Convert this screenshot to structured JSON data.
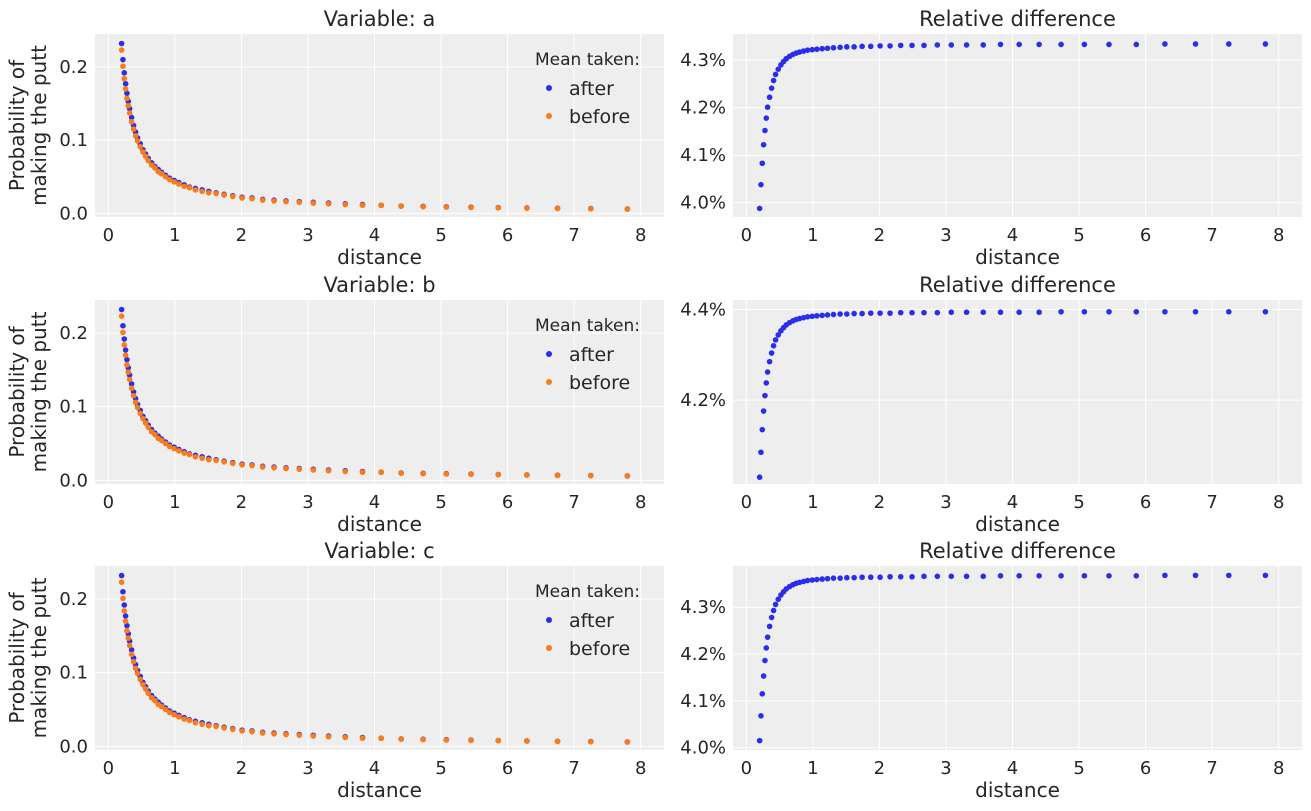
{
  "colors": {
    "after": "#2a2eec",
    "before": "#fa7c17",
    "panel_bg": "#eeeeee",
    "grid": "#ffffff"
  },
  "chart_data": [
    {
      "type": "scatter",
      "title": "Variable: a",
      "xlabel": "distance",
      "ylabel": [
        "Probability of",
        "making the putt"
      ],
      "xlim": [
        -0.2,
        8.35
      ],
      "ylim": [
        -0.005,
        0.245
      ],
      "xticks": [
        "0",
        "1",
        "2",
        "3",
        "4",
        "5",
        "6",
        "7",
        "8"
      ],
      "xtick_values": [
        0,
        1,
        2,
        3,
        4,
        5,
        6,
        7,
        8
      ],
      "yticks": [
        "0.0",
        "0.1",
        "0.2"
      ],
      "ytick_values": [
        0,
        0.1,
        0.2
      ],
      "legend": {
        "title": "Mean taken:",
        "position": "upper-right",
        "entries": [
          "after",
          "before"
        ]
      },
      "x": [
        0.2,
        0.22,
        0.24,
        0.26,
        0.28,
        0.3,
        0.32,
        0.35,
        0.38,
        0.41,
        0.44,
        0.48,
        0.52,
        0.56,
        0.6,
        0.65,
        0.7,
        0.75,
        0.8,
        0.86,
        0.92,
        0.99,
        1.06,
        1.14,
        1.22,
        1.31,
        1.41,
        1.51,
        1.62,
        1.74,
        1.87,
        2.01,
        2.16,
        2.32,
        2.49,
        2.67,
        2.87,
        3.08,
        3.31,
        3.56,
        3.82,
        4.1,
        4.4,
        4.73,
        5.08,
        5.45,
        5.86,
        6.29,
        6.75,
        7.25,
        7.8
      ],
      "series": [
        {
          "name": "after",
          "values": [
            0.232,
            0.21,
            0.192,
            0.177,
            0.164,
            0.153,
            0.143,
            0.131,
            0.12,
            0.111,
            0.103,
            0.095,
            0.087,
            0.081,
            0.075,
            0.069,
            0.064,
            0.06,
            0.056,
            0.052,
            0.048,
            0.045,
            0.042,
            0.039,
            0.036,
            0.034,
            0.032,
            0.03,
            0.028,
            0.026,
            0.024,
            0.022,
            0.021,
            0.019,
            0.018,
            0.017,
            0.016,
            0.015,
            0.014,
            0.013,
            0.012,
            0.011,
            0.01,
            0.0095,
            0.009,
            0.0085,
            0.0079,
            0.0074,
            0.0069,
            0.0065,
            0.006
          ]
        },
        {
          "name": "before",
          "values": [
            0.223,
            0.201,
            0.184,
            0.17,
            0.157,
            0.147,
            0.137,
            0.125,
            0.115,
            0.106,
            0.099,
            0.091,
            0.084,
            0.078,
            0.072,
            0.066,
            0.062,
            0.057,
            0.054,
            0.05,
            0.046,
            0.043,
            0.04,
            0.037,
            0.035,
            0.032,
            0.03,
            0.028,
            0.027,
            0.025,
            0.023,
            0.021,
            0.02,
            0.018,
            0.017,
            0.016,
            0.015,
            0.014,
            0.013,
            0.012,
            0.011,
            0.011,
            0.0098,
            0.0091,
            0.0086,
            0.0081,
            0.0076,
            0.0071,
            0.0066,
            0.0062,
            0.0058
          ]
        }
      ]
    },
    {
      "type": "scatter",
      "title": "Relative difference",
      "xlabel": "distance",
      "xlim": [
        -0.2,
        8.35
      ],
      "ylim": [
        0.0397,
        0.04355
      ],
      "xticks": [
        "0",
        "1",
        "2",
        "3",
        "4",
        "5",
        "6",
        "7",
        "8"
      ],
      "xtick_values": [
        0,
        1,
        2,
        3,
        4,
        5,
        6,
        7,
        8
      ],
      "yticks": [
        "4.0%",
        "4.1%",
        "4.2%",
        "4.3%"
      ],
      "ytick_values": [
        0.04,
        0.041,
        0.042,
        0.043
      ],
      "x": [
        0.2,
        0.22,
        0.24,
        0.26,
        0.28,
        0.3,
        0.32,
        0.35,
        0.38,
        0.41,
        0.44,
        0.48,
        0.52,
        0.56,
        0.6,
        0.65,
        0.7,
        0.75,
        0.8,
        0.86,
        0.92,
        0.99,
        1.06,
        1.14,
        1.22,
        1.31,
        1.41,
        1.51,
        1.62,
        1.74,
        1.87,
        2.01,
        2.16,
        2.32,
        2.49,
        2.67,
        2.87,
        3.08,
        3.31,
        3.56,
        3.82,
        4.1,
        4.4,
        4.73,
        5.08,
        5.45,
        5.86,
        6.29,
        6.75,
        7.25,
        7.8
      ],
      "series": [
        {
          "name": "after",
          "values": [
            0.03988,
            0.04038,
            0.04083,
            0.04122,
            0.04152,
            0.04178,
            0.04201,
            0.04222,
            0.04241,
            0.04257,
            0.0427,
            0.04281,
            0.0429,
            0.04297,
            0.04303,
            0.04308,
            0.04312,
            0.04315,
            0.04317,
            0.04319,
            0.04321,
            0.04322,
            0.04323,
            0.04324,
            0.04325,
            0.04326,
            0.04327,
            0.04328,
            0.04328,
            0.04329,
            0.04329,
            0.0433,
            0.0433,
            0.04331,
            0.04331,
            0.04331,
            0.04332,
            0.04332,
            0.04332,
            0.04332,
            0.04333,
            0.04333,
            0.04333,
            0.04333,
            0.04333,
            0.04333,
            0.04333,
            0.04334,
            0.04334,
            0.04334,
            0.04334
          ]
        }
      ]
    },
    {
      "type": "scatter",
      "title": "Variable: b",
      "xlabel": "distance",
      "ylabel": [
        "Probability of",
        "making the putt"
      ],
      "xlim": [
        -0.2,
        8.35
      ],
      "ylim": [
        -0.005,
        0.245
      ],
      "xticks": [
        "0",
        "1",
        "2",
        "3",
        "4",
        "5",
        "6",
        "7",
        "8"
      ],
      "xtick_values": [
        0,
        1,
        2,
        3,
        4,
        5,
        6,
        7,
        8
      ],
      "yticks": [
        "0.0",
        "0.1",
        "0.2"
      ],
      "ytick_values": [
        0,
        0.1,
        0.2
      ],
      "legend": {
        "title": "Mean taken:",
        "position": "upper-right",
        "entries": [
          "after",
          "before"
        ]
      },
      "x": [
        0.2,
        0.22,
        0.24,
        0.26,
        0.28,
        0.3,
        0.32,
        0.35,
        0.38,
        0.41,
        0.44,
        0.48,
        0.52,
        0.56,
        0.6,
        0.65,
        0.7,
        0.75,
        0.8,
        0.86,
        0.92,
        0.99,
        1.06,
        1.14,
        1.22,
        1.31,
        1.41,
        1.51,
        1.62,
        1.74,
        1.87,
        2.01,
        2.16,
        2.32,
        2.49,
        2.67,
        2.87,
        3.08,
        3.31,
        3.56,
        3.82,
        4.1,
        4.4,
        4.73,
        5.08,
        5.45,
        5.86,
        6.29,
        6.75,
        7.25,
        7.8
      ],
      "series": [
        {
          "name": "after",
          "values": [
            0.232,
            0.21,
            0.192,
            0.177,
            0.164,
            0.153,
            0.143,
            0.131,
            0.12,
            0.111,
            0.103,
            0.095,
            0.087,
            0.081,
            0.075,
            0.069,
            0.064,
            0.06,
            0.056,
            0.052,
            0.048,
            0.045,
            0.042,
            0.039,
            0.036,
            0.034,
            0.032,
            0.03,
            0.028,
            0.026,
            0.024,
            0.022,
            0.021,
            0.019,
            0.018,
            0.017,
            0.016,
            0.015,
            0.014,
            0.013,
            0.012,
            0.011,
            0.01,
            0.0095,
            0.009,
            0.0085,
            0.0079,
            0.0074,
            0.0069,
            0.0065,
            0.006
          ]
        },
        {
          "name": "before",
          "values": [
            0.223,
            0.201,
            0.184,
            0.17,
            0.157,
            0.147,
            0.137,
            0.125,
            0.115,
            0.106,
            0.099,
            0.091,
            0.084,
            0.078,
            0.072,
            0.066,
            0.062,
            0.057,
            0.054,
            0.05,
            0.046,
            0.043,
            0.04,
            0.037,
            0.035,
            0.032,
            0.03,
            0.028,
            0.027,
            0.025,
            0.023,
            0.021,
            0.02,
            0.018,
            0.017,
            0.016,
            0.015,
            0.014,
            0.013,
            0.012,
            0.011,
            0.011,
            0.0098,
            0.0091,
            0.0086,
            0.0081,
            0.0076,
            0.0071,
            0.0066,
            0.0062,
            0.0058
          ]
        }
      ]
    },
    {
      "type": "scatter",
      "title": "Relative difference",
      "xlabel": "distance",
      "xlim": [
        -0.2,
        8.35
      ],
      "ylim": [
        0.04015,
        0.04421
      ],
      "xticks": [
        "0",
        "1",
        "2",
        "3",
        "4",
        "5",
        "6",
        "7",
        "8"
      ],
      "xtick_values": [
        0,
        1,
        2,
        3,
        4,
        5,
        6,
        7,
        8
      ],
      "yticks": [
        "4.2%",
        "4.4%"
      ],
      "ytick_values": [
        0.042,
        0.044
      ],
      "x": [
        0.2,
        0.22,
        0.24,
        0.26,
        0.28,
        0.3,
        0.32,
        0.35,
        0.38,
        0.41,
        0.44,
        0.48,
        0.52,
        0.56,
        0.6,
        0.65,
        0.7,
        0.75,
        0.8,
        0.86,
        0.92,
        0.99,
        1.06,
        1.14,
        1.22,
        1.31,
        1.41,
        1.51,
        1.62,
        1.74,
        1.87,
        2.01,
        2.16,
        2.32,
        2.49,
        2.67,
        2.87,
        3.08,
        3.31,
        3.56,
        3.82,
        4.1,
        4.4,
        4.73,
        5.08,
        5.45,
        5.86,
        6.29,
        6.75,
        7.25,
        7.8
      ],
      "series": [
        {
          "name": "after",
          "values": [
            0.0403,
            0.04085,
            0.04135,
            0.04176,
            0.0421,
            0.04238,
            0.04262,
            0.04285,
            0.04304,
            0.0432,
            0.04333,
            0.04344,
            0.04353,
            0.0436,
            0.04366,
            0.04371,
            0.04375,
            0.04378,
            0.0438,
            0.04382,
            0.04384,
            0.04385,
            0.04386,
            0.04387,
            0.04388,
            0.04389,
            0.0439,
            0.0439,
            0.04391,
            0.04391,
            0.04392,
            0.04392,
            0.04392,
            0.04393,
            0.04393,
            0.04393,
            0.04393,
            0.04394,
            0.04394,
            0.04394,
            0.04394,
            0.04394,
            0.04394,
            0.04395,
            0.04395,
            0.04395,
            0.04395,
            0.04395,
            0.04395,
            0.04395,
            0.04395
          ]
        }
      ]
    },
    {
      "type": "scatter",
      "title": "Variable: c",
      "xlabel": "distance",
      "ylabel": [
        "Probability of",
        "making the putt"
      ],
      "xlim": [
        -0.2,
        8.35
      ],
      "ylim": [
        -0.005,
        0.245
      ],
      "xticks": [
        "0",
        "1",
        "2",
        "3",
        "4",
        "5",
        "6",
        "7",
        "8"
      ],
      "xtick_values": [
        0,
        1,
        2,
        3,
        4,
        5,
        6,
        7,
        8
      ],
      "yticks": [
        "0.0",
        "0.1",
        "0.2"
      ],
      "ytick_values": [
        0,
        0.1,
        0.2
      ],
      "legend": {
        "title": "Mean taken:",
        "position": "upper-right",
        "entries": [
          "after",
          "before"
        ]
      },
      "x": [
        0.2,
        0.22,
        0.24,
        0.26,
        0.28,
        0.3,
        0.32,
        0.35,
        0.38,
        0.41,
        0.44,
        0.48,
        0.52,
        0.56,
        0.6,
        0.65,
        0.7,
        0.75,
        0.8,
        0.86,
        0.92,
        0.99,
        1.06,
        1.14,
        1.22,
        1.31,
        1.41,
        1.51,
        1.62,
        1.74,
        1.87,
        2.01,
        2.16,
        2.32,
        2.49,
        2.67,
        2.87,
        3.08,
        3.31,
        3.56,
        3.82,
        4.1,
        4.4,
        4.73,
        5.08,
        5.45,
        5.86,
        6.29,
        6.75,
        7.25,
        7.8
      ],
      "series": [
        {
          "name": "after",
          "values": [
            0.232,
            0.21,
            0.192,
            0.177,
            0.164,
            0.153,
            0.143,
            0.131,
            0.12,
            0.111,
            0.103,
            0.095,
            0.087,
            0.081,
            0.075,
            0.069,
            0.064,
            0.06,
            0.056,
            0.052,
            0.048,
            0.045,
            0.042,
            0.039,
            0.036,
            0.034,
            0.032,
            0.03,
            0.028,
            0.026,
            0.024,
            0.022,
            0.021,
            0.019,
            0.018,
            0.017,
            0.016,
            0.015,
            0.014,
            0.013,
            0.012,
            0.011,
            0.01,
            0.0095,
            0.009,
            0.0085,
            0.0079,
            0.0074,
            0.0069,
            0.0065,
            0.006
          ]
        },
        {
          "name": "before",
          "values": [
            0.223,
            0.201,
            0.184,
            0.17,
            0.157,
            0.147,
            0.137,
            0.125,
            0.115,
            0.106,
            0.099,
            0.091,
            0.084,
            0.078,
            0.072,
            0.066,
            0.062,
            0.057,
            0.054,
            0.05,
            0.046,
            0.043,
            0.04,
            0.037,
            0.035,
            0.032,
            0.03,
            0.028,
            0.027,
            0.025,
            0.023,
            0.021,
            0.02,
            0.018,
            0.017,
            0.016,
            0.015,
            0.014,
            0.013,
            0.012,
            0.011,
            0.011,
            0.0098,
            0.0091,
            0.0086,
            0.0081,
            0.0076,
            0.0071,
            0.0066,
            0.0062,
            0.0058
          ]
        }
      ]
    },
    {
      "type": "scatter",
      "title": "Relative difference",
      "xlabel": "distance",
      "xlim": [
        -0.2,
        8.35
      ],
      "ylim": [
        0.03995,
        0.04388
      ],
      "xticks": [
        "0",
        "1",
        "2",
        "3",
        "4",
        "5",
        "6",
        "7",
        "8"
      ],
      "xtick_values": [
        0,
        1,
        2,
        3,
        4,
        5,
        6,
        7,
        8
      ],
      "yticks": [
        "4.0%",
        "4.1%",
        "4.2%",
        "4.3%"
      ],
      "ytick_values": [
        0.04,
        0.041,
        0.042,
        0.043
      ],
      "x": [
        0.2,
        0.22,
        0.24,
        0.26,
        0.28,
        0.3,
        0.32,
        0.35,
        0.38,
        0.41,
        0.44,
        0.48,
        0.52,
        0.56,
        0.6,
        0.65,
        0.7,
        0.75,
        0.8,
        0.86,
        0.92,
        0.99,
        1.06,
        1.14,
        1.22,
        1.31,
        1.41,
        1.51,
        1.62,
        1.74,
        1.87,
        2.01,
        2.16,
        2.32,
        2.49,
        2.67,
        2.87,
        3.08,
        3.31,
        3.56,
        3.82,
        4.1,
        4.4,
        4.73,
        5.08,
        5.45,
        5.86,
        6.29,
        6.75,
        7.25,
        7.8
      ],
      "series": [
        {
          "name": "after",
          "values": [
            0.04015,
            0.04068,
            0.04115,
            0.04153,
            0.04186,
            0.04213,
            0.04236,
            0.04259,
            0.04278,
            0.04293,
            0.04306,
            0.04317,
            0.04326,
            0.04333,
            0.04339,
            0.04344,
            0.04348,
            0.04351,
            0.04353,
            0.04355,
            0.04357,
            0.04358,
            0.04359,
            0.0436,
            0.04361,
            0.04362,
            0.04362,
            0.04363,
            0.04363,
            0.04364,
            0.04364,
            0.04364,
            0.04365,
            0.04365,
            0.04365,
            0.04366,
            0.04366,
            0.04366,
            0.04366,
            0.04366,
            0.04367,
            0.04367,
            0.04367,
            0.04367,
            0.04367,
            0.04367,
            0.04367,
            0.04368,
            0.04368,
            0.04368,
            0.04368
          ]
        }
      ]
    }
  ]
}
